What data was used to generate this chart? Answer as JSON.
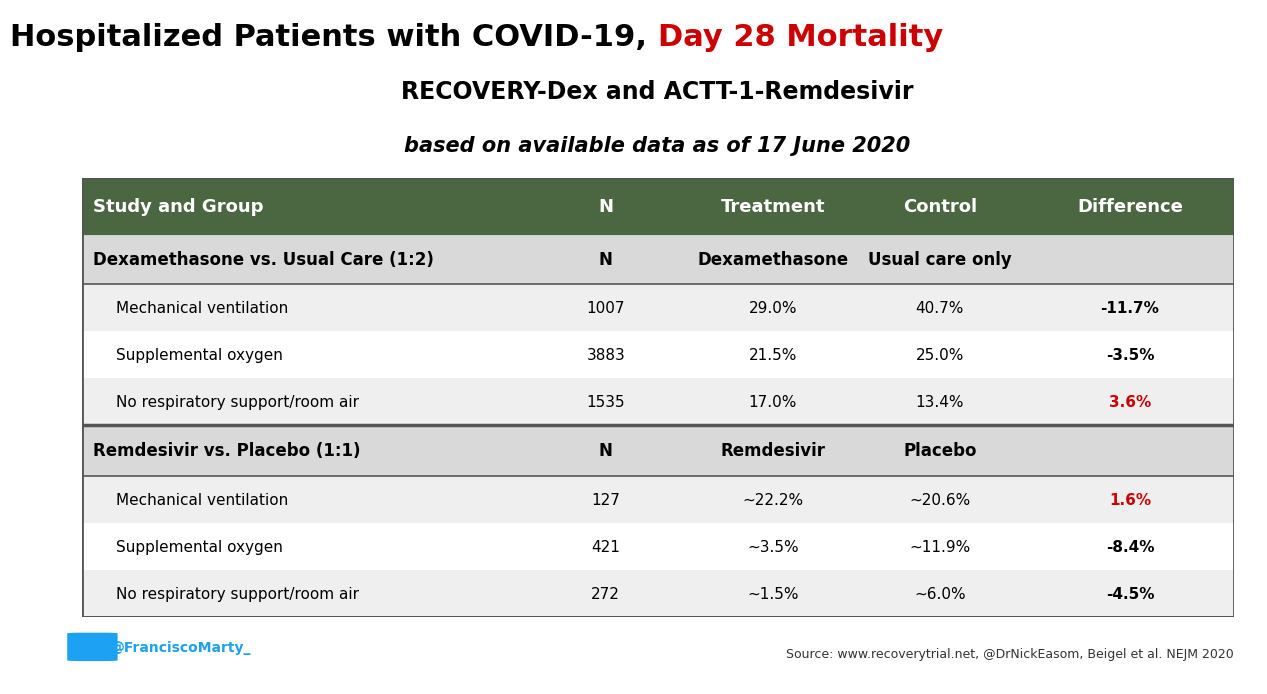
{
  "title_part1": "Hospitalized Patients with COVID-19, ",
  "title_part2": "Day 28 Mortality",
  "subtitle1": "RECOVERY-Dex and ACTT-1-Remdesivir",
  "subtitle2": "based on available data as of 17 June 2020",
  "header_bg": "#4a6741",
  "header_text_color": "#ffffff",
  "subheader_bg": "#d9d9d9",
  "row_bg_light": "#efefef",
  "row_bg_white": "#ffffff",
  "col_headers": [
    "Study and Group",
    "N",
    "Treatment",
    "Control",
    "Difference"
  ],
  "section1_header": [
    "Dexamethasone vs. Usual Care (1:2)",
    "N",
    "Dexamethasone",
    "Usual care only",
    ""
  ],
  "section1_rows": [
    [
      "Mechanical ventilation",
      "1007",
      "29.0%",
      "40.7%",
      "-11.7%"
    ],
    [
      "Supplemental oxygen",
      "3883",
      "21.5%",
      "25.0%",
      "-3.5%"
    ],
    [
      "No respiratory support/room air",
      "1535",
      "17.0%",
      "13.4%",
      "3.6%"
    ]
  ],
  "section1_diff_colors": [
    "#000000",
    "#000000",
    "#cc0000"
  ],
  "section2_header": [
    "Remdesivir vs. Placebo (1:1)",
    "N",
    "Remdesivir",
    "Placebo",
    ""
  ],
  "section2_rows": [
    [
      "Mechanical ventilation",
      "127",
      "~22.2%",
      "~20.6%",
      "1.6%"
    ],
    [
      "Supplemental oxygen",
      "421",
      "~3.5%",
      "~11.9%",
      "-8.4%"
    ],
    [
      "No respiratory support/room air",
      "272",
      "~1.5%",
      "~6.0%",
      "-4.5%"
    ]
  ],
  "section2_diff_colors": [
    "#cc0000",
    "#000000",
    "#000000"
  ],
  "footer_twitter": "@FranciscoMarty_",
  "footer_source": "Source: www.recoverytrial.net, @DrNickEasom, Beigel et al. NEJM 2020",
  "title_color_black": "#000000",
  "title_color_red": "#cc0000",
  "bg_color": "#ffffff",
  "border_color": "#555555",
  "twitter_color": "#1da1f2"
}
